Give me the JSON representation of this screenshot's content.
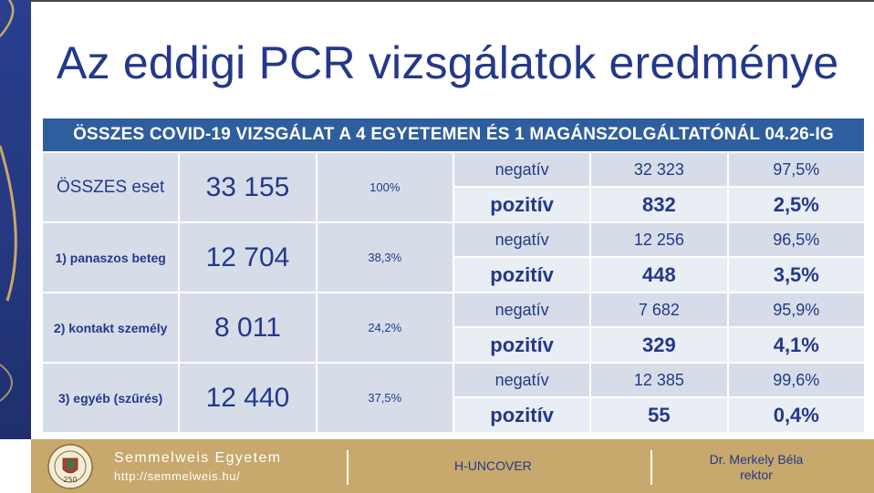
{
  "title": "Az eddigi PCR vizsgálatok eredménye",
  "colors": {
    "accent_blue": "#24388a",
    "header_blue": "#2e5e9e",
    "cell_light": "#d6dde9",
    "cell_lighter": "#e9edf4",
    "footer_gold": "#c7a86d"
  },
  "table": {
    "header": "ÖSSZES COVID-19 VIZSGÁLAT A 4 EGYETEMEN ÉS 1 MAGÁNSZOLGÁLTATÓNÁL  04.26-IG",
    "groups": [
      {
        "label": "ÖSSZES eset",
        "total": "33 155",
        "percent": "100%",
        "negative": {
          "label": "negatív",
          "count": "32 323",
          "percent": "97,5%"
        },
        "positive": {
          "label": "pozitív",
          "count": "832",
          "percent": "2,5%"
        }
      },
      {
        "label": "1) panaszos beteg",
        "total": "12 704",
        "percent": "38,3%",
        "negative": {
          "label": "negatív",
          "count": "12 256",
          "percent": "96,5%"
        },
        "positive": {
          "label": "pozitív",
          "count": "448",
          "percent": "3,5%"
        }
      },
      {
        "label": "2) kontakt személy",
        "total": "8 011",
        "percent": "24,2%",
        "negative": {
          "label": "negatív",
          "count": "7 682",
          "percent": "95,9%"
        },
        "positive": {
          "label": "pozitív",
          "count": "329",
          "percent": "4,1%"
        }
      },
      {
        "label": "3) egyéb (szűrés)",
        "total": "12 440",
        "percent": "37,5%",
        "negative": {
          "label": "negatív",
          "count": "12 385",
          "percent": "99,6%"
        },
        "positive": {
          "label": "pozitív",
          "count": "55",
          "percent": "0,4%"
        }
      }
    ]
  },
  "footer": {
    "logo_icon": "university-seal-icon",
    "logo_text": "250",
    "university_name": "Semmelweis Egyetem",
    "url": "http://semmelweis.hu/",
    "project": "H-UNCOVER",
    "rector_name": "Dr. Merkely Béla",
    "rector_title": "rektor"
  }
}
